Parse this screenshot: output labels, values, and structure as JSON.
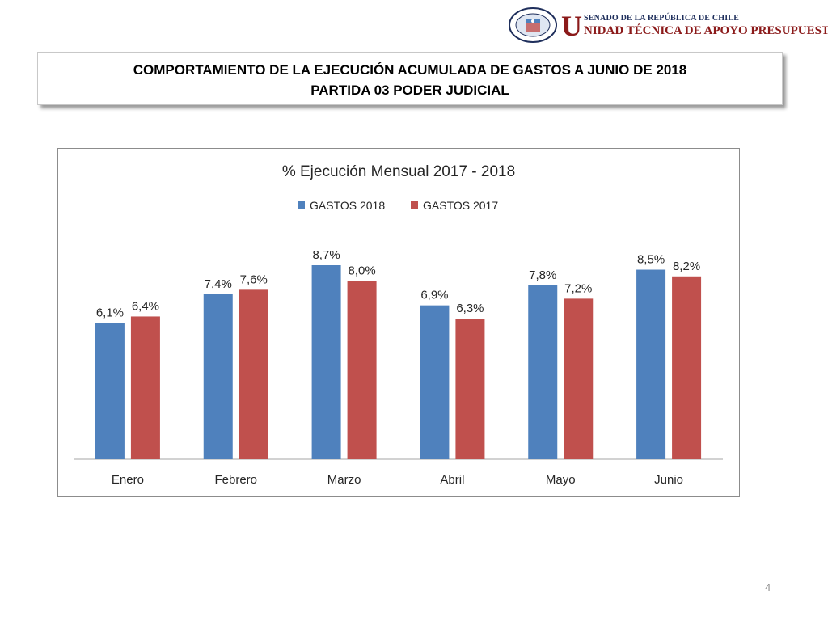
{
  "header": {
    "logo_seal_text": "REPÚBLICA DE CHILE · SENADO",
    "org_letter": "U",
    "org_line1": "SENADO DE LA REPÚBLICA DE CHILE",
    "org_line2": "NIDAD TÉCNICA DE APOYO PRESUPUESTARIO"
  },
  "slide": {
    "title_line1": "COMPORTAMIENTO DE LA EJECUCIÓN ACUMULADA DE GASTOS A JUNIO DE 2018",
    "title_line2": "PARTIDA 03 PODER JUDICIAL",
    "page_number": "4"
  },
  "colors": {
    "series_2018": "#4f81bd",
    "series_2017": "#c0504d"
  },
  "chart_data": {
    "type": "bar",
    "title": "% Ejecución Mensual 2017 - 2018",
    "categories": [
      "Enero",
      "Febrero",
      "Marzo",
      "Abril",
      "Mayo",
      "Junio"
    ],
    "series": [
      {
        "name": "GASTOS 2018",
        "values": [
          6.1,
          7.4,
          8.7,
          6.9,
          7.8,
          8.5
        ],
        "labels": [
          "6,1%",
          "7,4%",
          "8,7%",
          "6,9%",
          "7,8%",
          "8,5%"
        ]
      },
      {
        "name": "GASTOS 2017",
        "values": [
          6.4,
          7.6,
          8.0,
          6.3,
          7.2,
          8.2
        ],
        "labels": [
          "6,4%",
          "7,6%",
          "8,0%",
          "6,3%",
          "7,2%",
          "8,2%"
        ]
      }
    ],
    "xlabel": "",
    "ylabel": "",
    "ylim": [
      0,
      10
    ],
    "legend_position": "top",
    "grid": false
  }
}
